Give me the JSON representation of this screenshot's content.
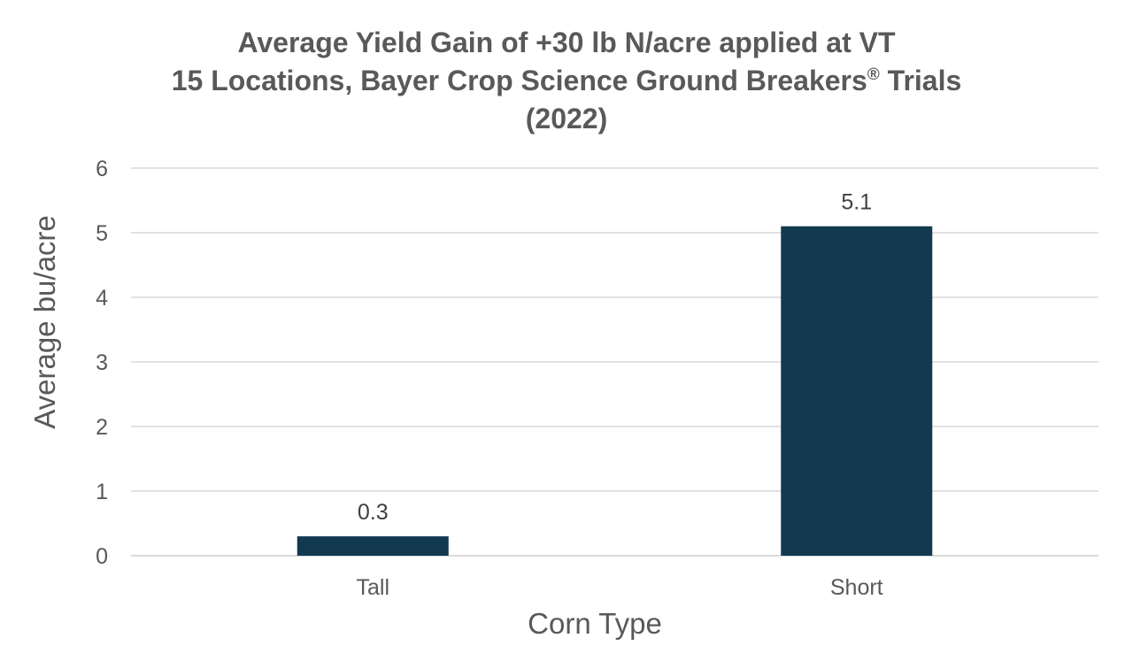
{
  "chart_data": {
    "type": "bar",
    "title_lines": [
      "Average Yield Gain of +30 lb N/acre applied at VT",
      "15 Locations, Bayer Crop Science Ground Breakers",
      "(2022)"
    ],
    "title_line2_superscript": "®",
    "title_line2_suffix": " Trials",
    "categories": [
      "Tall",
      "Short"
    ],
    "values": [
      0.3,
      5.1
    ],
    "data_labels": [
      "0.3",
      "5.1"
    ],
    "xlabel": "Corn Type",
    "ylabel": "Average bu/acre",
    "ylim": [
      0,
      6
    ],
    "yticks": [
      "0",
      "1",
      "2",
      "3",
      "4",
      "5",
      "6"
    ],
    "grid": true,
    "legend": "none",
    "bar_color": "#12394f"
  }
}
